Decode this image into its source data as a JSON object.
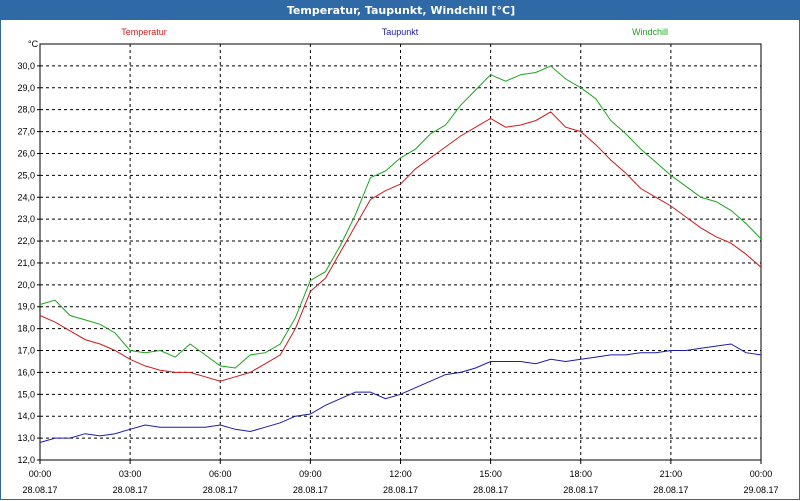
{
  "window": {
    "title": "Temperatur, Taupunkt, Windchill [°C]"
  },
  "colors": {
    "titlebar": "#2f6aa6",
    "temperatur": "#d11a1a",
    "taupunkt": "#1a1ab3",
    "windchill": "#1aa61a",
    "grid": "#000000"
  },
  "chart_data": {
    "type": "line",
    "title": "Temperatur, Taupunkt, Windchill [°C]",
    "ylabel": "°C",
    "xlabel": "",
    "ylim": [
      12.0,
      31.0
    ],
    "xlim": [
      0,
      24
    ],
    "grid": true,
    "legend_position": "top",
    "x_ticks": [
      {
        "time": "00:00",
        "date": "28.08.17"
      },
      {
        "time": "03:00",
        "date": "28.08.17"
      },
      {
        "time": "06:00",
        "date": "28.08.17"
      },
      {
        "time": "09:00",
        "date": "28.08.17"
      },
      {
        "time": "12:00",
        "date": "28.08.17"
      },
      {
        "time": "15:00",
        "date": "28.08.17"
      },
      {
        "time": "18:00",
        "date": "28.08.17"
      },
      {
        "time": "21:00",
        "date": "28.08.17"
      },
      {
        "time": "00:00",
        "date": "29.08.17"
      }
    ],
    "y_ticks": [
      "12,0",
      "13,0",
      "14,0",
      "15,0",
      "16,0",
      "17,0",
      "18,0",
      "19,0",
      "20,0",
      "21,0",
      "22,0",
      "23,0",
      "24,0",
      "25,0",
      "26,0",
      "27,0",
      "28,0",
      "29,0",
      "30,0"
    ],
    "y_tick_values": [
      12,
      13,
      14,
      15,
      16,
      17,
      18,
      19,
      20,
      21,
      22,
      23,
      24,
      25,
      26,
      27,
      28,
      29,
      30
    ],
    "x_hours": [
      0,
      0.5,
      1,
      1.5,
      2,
      2.5,
      3,
      3.5,
      4,
      4.5,
      5,
      5.5,
      6,
      6.5,
      7,
      7.5,
      8,
      8.5,
      9,
      9.5,
      10,
      10.5,
      11,
      11.5,
      12,
      12.5,
      13,
      13.5,
      14,
      14.5,
      15,
      15.5,
      16,
      16.5,
      17,
      17.5,
      18,
      18.5,
      19,
      19.5,
      20,
      20.5,
      21,
      21.5,
      22,
      22.5,
      23,
      23.5,
      24
    ],
    "series": [
      {
        "name": "Temperatur",
        "color": "#d11a1a",
        "values": [
          18.6,
          18.3,
          17.9,
          17.5,
          17.3,
          17.0,
          16.6,
          16.3,
          16.1,
          16.0,
          16.0,
          15.8,
          15.6,
          15.8,
          16.0,
          16.4,
          16.8,
          18.0,
          19.7,
          20.3,
          21.5,
          22.7,
          23.9,
          24.3,
          24.6,
          25.3,
          25.8,
          26.3,
          26.8,
          27.2,
          27.6,
          27.2,
          27.3,
          27.5,
          27.9,
          27.2,
          27.0,
          26.4,
          25.7,
          25.1,
          24.4,
          24.0,
          23.6,
          23.1,
          22.6,
          22.2,
          21.9,
          21.4,
          20.8
        ]
      },
      {
        "name": "Taupunkt",
        "color": "#1a1ab3",
        "values": [
          12.8,
          13.0,
          13.0,
          13.2,
          13.1,
          13.2,
          13.4,
          13.6,
          13.5,
          13.5,
          13.5,
          13.5,
          13.6,
          13.4,
          13.3,
          13.5,
          13.7,
          14.0,
          14.1,
          14.5,
          14.8,
          15.1,
          15.1,
          14.8,
          15.0,
          15.3,
          15.6,
          15.9,
          16.0,
          16.2,
          16.5,
          16.5,
          16.5,
          16.4,
          16.6,
          16.5,
          16.6,
          16.7,
          16.8,
          16.8,
          16.9,
          16.9,
          17.0,
          17.0,
          17.1,
          17.2,
          17.3,
          16.9,
          16.8
        ]
      },
      {
        "name": "Windchill",
        "color": "#1aa61a",
        "values": [
          19.1,
          19.3,
          18.6,
          18.4,
          18.2,
          17.8,
          17.0,
          16.9,
          17.0,
          16.7,
          17.3,
          16.8,
          16.3,
          16.2,
          16.8,
          16.9,
          17.3,
          18.5,
          20.2,
          20.6,
          21.8,
          23.2,
          24.9,
          25.2,
          25.8,
          26.2,
          26.9,
          27.3,
          28.2,
          28.9,
          29.6,
          29.3,
          29.6,
          29.7,
          30.0,
          29.4,
          29.0,
          28.5,
          27.5,
          26.9,
          26.2,
          25.6,
          25.0,
          24.5,
          24.0,
          23.8,
          23.4,
          22.8,
          22.1
        ]
      }
    ]
  }
}
